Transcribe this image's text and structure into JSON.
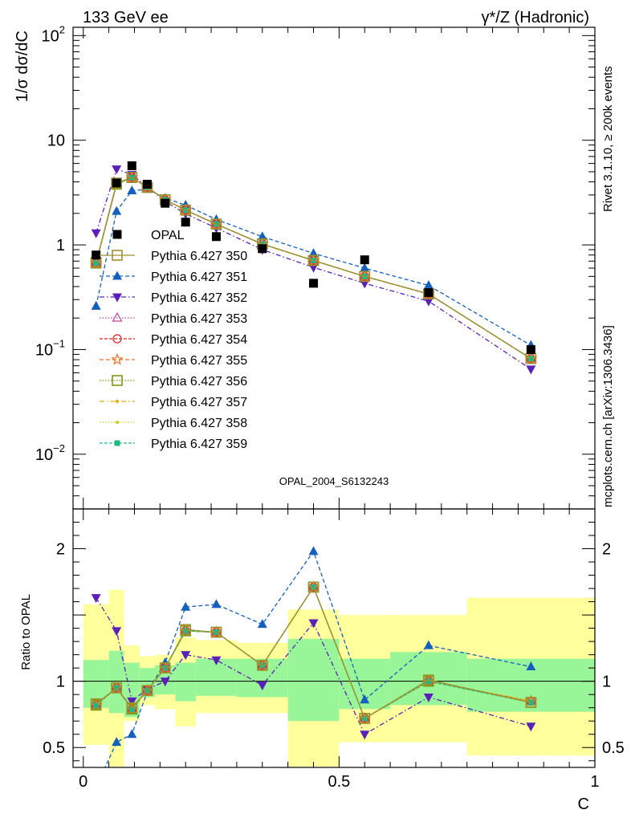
{
  "header": {
    "left": "133 GeV ee",
    "right": "γ*/Z (Hadronic)"
  },
  "side_labels": {
    "top": "Rivet 3.1.10, ≥ 200k events",
    "bottom": "mcplots.cern.ch [arXiv:1306.3436]"
  },
  "watermark": "OPAL_2004_S6132243",
  "chart_data": [
    {
      "type": "scatter",
      "panel": "main",
      "ylabel": "1/σ dσ/dC",
      "yscale": "log",
      "ylim": [
        0.003,
        120
      ],
      "xlim": [
        -0.02,
        1.0
      ],
      "y_ticks": [
        {
          "v": 0.01,
          "base": "10",
          "exp": "−2"
        },
        {
          "v": 0.1,
          "base": "10",
          "exp": "−1"
        },
        {
          "v": 1,
          "base": "1",
          "exp": ""
        },
        {
          "v": 10,
          "base": "10",
          "exp": ""
        },
        {
          "v": 100,
          "base": "10",
          "exp": "2"
        }
      ],
      "legend_position": "center-left",
      "x": [
        0.025,
        0.065,
        0.095,
        0.125,
        0.16,
        0.2,
        0.26,
        0.35,
        0.45,
        0.55,
        0.675,
        0.875
      ],
      "data": {
        "name": "OPAL",
        "values": [
          0.8,
          3.9,
          5.7,
          3.8,
          2.5,
          1.65,
          1.2,
          0.92,
          0.43,
          0.72,
          0.35,
          0.1
        ]
      },
      "series": [
        {
          "name": "Pythia 6.427 350",
          "color": "#a09030",
          "marker": "open-square",
          "dash": "",
          "values": [
            0.68,
            3.9,
            4.4,
            3.55,
            2.7,
            2.15,
            1.58,
            1.02,
            0.71,
            0.5,
            0.34,
            0.082
          ]
        },
        {
          "name": "Pythia 6.427 351",
          "color": "#1560bd",
          "marker": "tri-up",
          "dash": "5,3",
          "values": [
            0.26,
            2.1,
            3.3,
            3.4,
            2.8,
            2.4,
            1.75,
            1.2,
            0.83,
            0.6,
            0.41,
            0.11
          ]
        },
        {
          "name": "Pythia 6.427 352",
          "color": "#5a20b8",
          "marker": "tri-down",
          "dash": "6,3,1.5,3",
          "values": [
            1.3,
            5.3,
            4.7,
            3.6,
            2.6,
            1.98,
            1.45,
            0.9,
            0.61,
            0.43,
            0.29,
            0.065
          ]
        },
        {
          "name": "Pythia 6.427 353",
          "color": "#c040a0",
          "marker": "open-tri",
          "dash": "1.5,2",
          "values": [
            0.67,
            3.8,
            4.4,
            3.55,
            2.7,
            2.15,
            1.58,
            1.02,
            0.71,
            0.5,
            0.34,
            0.082
          ]
        },
        {
          "name": "Pythia 6.427 354",
          "color": "#e02020",
          "marker": "open-circle",
          "dash": "4,2",
          "values": [
            0.67,
            3.8,
            4.4,
            3.55,
            2.7,
            2.15,
            1.58,
            1.02,
            0.71,
            0.5,
            0.34,
            0.082
          ]
        },
        {
          "name": "Pythia 6.427 355",
          "color": "#f07020",
          "marker": "open-star",
          "dash": "5,3",
          "values": [
            0.67,
            3.8,
            4.4,
            3.55,
            2.7,
            2.15,
            1.58,
            1.02,
            0.71,
            0.5,
            0.34,
            0.082
          ]
        },
        {
          "name": "Pythia 6.427 356",
          "color": "#7a9a10",
          "marker": "open-square",
          "dash": "1.5,2",
          "values": [
            0.67,
            3.8,
            4.4,
            3.55,
            2.7,
            2.15,
            1.58,
            1.02,
            0.71,
            0.5,
            0.34,
            0.082
          ]
        },
        {
          "name": "Pythia 6.427 357",
          "color": "#e0b010",
          "marker": "small-dot",
          "dash": "6,3,1.5,3",
          "values": [
            0.67,
            3.8,
            4.4,
            3.55,
            2.7,
            2.15,
            1.58,
            1.02,
            0.71,
            0.5,
            0.34,
            0.082
          ]
        },
        {
          "name": "Pythia 6.427 358",
          "color": "#c8d020",
          "marker": "small-dot",
          "dash": "1.5,2",
          "values": [
            0.67,
            3.8,
            4.4,
            3.55,
            2.7,
            2.15,
            1.58,
            1.02,
            0.71,
            0.5,
            0.34,
            0.082
          ]
        },
        {
          "name": "Pythia 6.427 359",
          "color": "#20b880",
          "marker": "filled-square",
          "dash": "4,2",
          "values": [
            0.67,
            3.8,
            4.4,
            3.55,
            2.7,
            2.15,
            1.58,
            1.02,
            0.71,
            0.5,
            0.34,
            0.082
          ]
        }
      ]
    },
    {
      "type": "scatter",
      "panel": "ratio",
      "ylabel": "Ratio to OPAL",
      "xlabel": "C",
      "ylim": [
        0.35,
        2.3
      ],
      "xlim": [
        -0.02,
        1.0
      ],
      "x_ticks": [
        {
          "v": 0,
          "label": "0"
        },
        {
          "v": 0.5,
          "label": "0.5"
        },
        {
          "v": 1,
          "label": "1"
        }
      ],
      "y_ticks": [
        {
          "v": 0.5,
          "label": "0.5"
        },
        {
          "v": 1,
          "label": "1"
        },
        {
          "v": 2,
          "label": "2"
        }
      ],
      "bands": {
        "bins": [
          [
            0,
            0.05
          ],
          [
            0.05,
            0.08
          ],
          [
            0.08,
            0.11
          ],
          [
            0.11,
            0.14
          ],
          [
            0.14,
            0.18
          ],
          [
            0.18,
            0.22
          ],
          [
            0.22,
            0.3
          ],
          [
            0.3,
            0.4
          ],
          [
            0.4,
            0.5
          ],
          [
            0.5,
            0.6
          ],
          [
            0.6,
            0.75
          ],
          [
            0.75,
            1.0
          ]
        ],
        "inner_color": "#98f598",
        "outer_color": "#ffff9c",
        "inner": [
          [
            0.8,
            1.16
          ],
          [
            0.76,
            1.23
          ],
          [
            0.73,
            1.14
          ],
          [
            0.88,
            1.1
          ],
          [
            0.9,
            1.12
          ],
          [
            0.85,
            1.14
          ],
          [
            0.89,
            1.17
          ],
          [
            0.88,
            1.17
          ],
          [
            0.7,
            1.32
          ],
          [
            0.79,
            1.17
          ],
          [
            0.82,
            1.22
          ],
          [
            0.77,
            1.17
          ]
        ],
        "outer": [
          [
            0.52,
            1.58
          ],
          [
            0.35,
            1.69
          ],
          [
            0.7,
            1.27
          ],
          [
            0.82,
            1.19
          ],
          [
            0.79,
            1.2
          ],
          [
            0.66,
            1.33
          ],
          [
            0.76,
            1.31
          ],
          [
            0.76,
            1.29
          ],
          [
            0.35,
            1.54
          ],
          [
            0.54,
            1.5
          ],
          [
            0.54,
            1.5
          ],
          [
            0.44,
            1.63
          ]
        ]
      },
      "series_ratios": {
        "Pythia 6.427 350": [
          0.83,
          0.95,
          0.8,
          0.93,
          1.1,
          1.39,
          1.37,
          1.12,
          1.71,
          0.72,
          1.01,
          0.84
        ],
        "Pythia 6.427 351": [
          0.2,
          0.54,
          0.6,
          0.92,
          1.14,
          1.56,
          1.58,
          1.43,
          1.98,
          0.86,
          1.27,
          1.11
        ],
        "Pythia 6.427 352": [
          1.63,
          1.38,
          0.85,
          0.94,
          1.0,
          1.2,
          1.16,
          0.97,
          1.44,
          0.6,
          0.88,
          0.66
        ],
        "Pythia 6.427 353": [
          0.82,
          0.95,
          0.79,
          0.93,
          1.1,
          1.38,
          1.37,
          1.12,
          1.71,
          0.72,
          1.0,
          0.85
        ],
        "Pythia 6.427 354": [
          0.82,
          0.95,
          0.79,
          0.93,
          1.1,
          1.38,
          1.37,
          1.12,
          1.71,
          0.72,
          1.0,
          0.85
        ],
        "Pythia 6.427 355": [
          0.82,
          0.95,
          0.79,
          0.93,
          1.1,
          1.38,
          1.37,
          1.12,
          1.71,
          0.72,
          1.0,
          0.85
        ],
        "Pythia 6.427 356": [
          0.82,
          0.95,
          0.79,
          0.93,
          1.1,
          1.38,
          1.37,
          1.12,
          1.71,
          0.72,
          1.0,
          0.84
        ],
        "Pythia 6.427 357": [
          0.82,
          0.95,
          0.79,
          0.93,
          1.1,
          1.38,
          1.37,
          1.12,
          1.71,
          0.72,
          1.0,
          0.85
        ],
        "Pythia 6.427 358": [
          0.82,
          0.95,
          0.79,
          0.93,
          1.1,
          1.38,
          1.37,
          1.12,
          1.71,
          0.72,
          1.0,
          0.85
        ],
        "Pythia 6.427 359": [
          0.82,
          0.95,
          0.79,
          0.93,
          1.1,
          1.38,
          1.37,
          1.12,
          1.71,
          0.72,
          1.0,
          0.84
        ]
      }
    }
  ]
}
